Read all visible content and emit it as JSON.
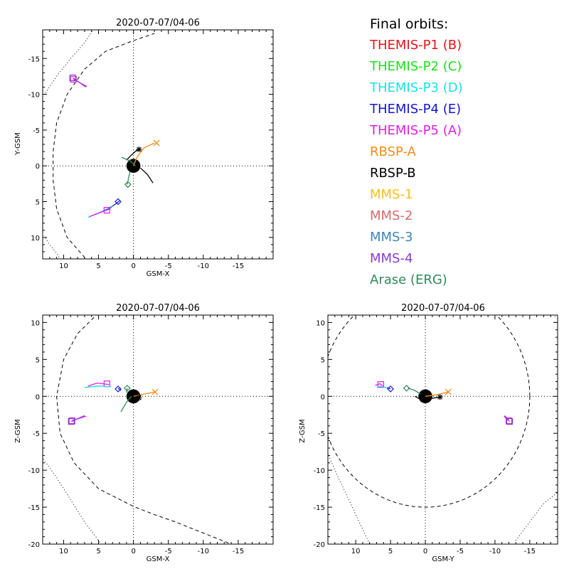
{
  "colors": {
    "THEMIS-P1": "#e8111c",
    "THEMIS-P2": "#19e01a",
    "THEMIS-P3": "#19dfe6",
    "THEMIS-P4": "#1414d6",
    "THEMIS-P5": "#e020e0",
    "RBSP-A": "#f08c1c",
    "RBSP-B": "#000000",
    "MMS-1": "#f5c018",
    "MMS-2": "#d46a6a",
    "MMS-3": "#3c86b8",
    "MMS-4": "#8a3bd6",
    "Arase": "#2f8a5a"
  },
  "legend": {
    "title": "Final orbits:",
    "items": [
      {
        "label": "THEMIS-P1 (B)",
        "key": "THEMIS-P1"
      },
      {
        "label": "THEMIS-P2 (C)",
        "key": "THEMIS-P2"
      },
      {
        "label": "THEMIS-P3 (D)",
        "key": "THEMIS-P3"
      },
      {
        "label": "THEMIS-P4 (E)",
        "key": "THEMIS-P4"
      },
      {
        "label": "THEMIS-P5 (A)",
        "key": "THEMIS-P5"
      },
      {
        "label": "RBSP-A",
        "key": "RBSP-A"
      },
      {
        "label": "RBSP-B",
        "key": "RBSP-B"
      },
      {
        "label": "MMS-1",
        "key": "MMS-1"
      },
      {
        "label": "MMS-2",
        "key": "MMS-2"
      },
      {
        "label": "MMS-3",
        "key": "MMS-3"
      },
      {
        "label": "MMS-4",
        "key": "MMS-4"
      },
      {
        "label": "Arase (ERG)",
        "key": "Arase"
      }
    ]
  },
  "chart_data": [
    {
      "type": "line",
      "title": "2020-07-07/04-06",
      "xlabel": "GSM-X",
      "ylabel": "Y-GSM",
      "xlim": [
        13,
        -20
      ],
      "ylim": [
        13,
        -19
      ],
      "xticks": [
        10,
        5,
        0,
        -5,
        -10,
        -15
      ],
      "yticks": [
        10,
        5,
        0,
        -5,
        -10,
        -15
      ],
      "xticklabels": [
        "10",
        "5",
        "0",
        "-5",
        "-10",
        "-15"
      ],
      "yticklabels": [
        "10",
        "5",
        "0",
        "-5",
        "-10",
        "-15"
      ],
      "boundaries": {
        "magnetopause": [
          [
            2,
            16.8
          ],
          [
            6,
            13.9
          ],
          [
            9.5,
            10
          ],
          [
            11,
            6
          ],
          [
            11.5,
            2
          ],
          [
            11.5,
            -2
          ],
          [
            11,
            -6
          ],
          [
            9.5,
            -10
          ],
          [
            7,
            -13.5
          ],
          [
            4,
            -16
          ],
          [
            0,
            -17.5
          ],
          [
            -3,
            -18.5
          ]
        ],
        "bow_shock": [
          [
            12.6,
            -10.2
          ],
          [
            11,
            -12.5
          ],
          [
            9,
            -15
          ],
          [
            7,
            -17.2
          ],
          [
            5.8,
            -19
          ]
        ],
        "bow_shock_2": [
          [
            12.6,
            10.1
          ],
          [
            12,
            11
          ],
          [
            11,
            12.2
          ],
          [
            10.5,
            13
          ]
        ]
      },
      "series": [
        {
          "key": "THEMIS-P5",
          "points": [
            [
              6.7,
              -11.1
            ],
            [
              8.6,
              -12.1
            ]
          ],
          "marker": "square",
          "end": [
            8.6,
            -12.1
          ]
        },
        {
          "key": "MMS-4",
          "points": [
            [
              6.8,
              -11
            ],
            [
              8.7,
              -12.3
            ]
          ],
          "marker": "square",
          "end": [
            8.7,
            -12.3
          ]
        },
        {
          "key": "RBSP-A",
          "points": [
            [
              0,
              0
            ],
            [
              -0.5,
              -1.2
            ],
            [
              -1.5,
              -2.5
            ],
            [
              -3,
              -3.2
            ]
          ],
          "marker": "x",
          "end": [
            -3.3,
            -3.2
          ]
        },
        {
          "key": "RBSP-B",
          "points": [
            [
              1,
              -0.8
            ],
            [
              0.3,
              -1.5
            ],
            [
              -0.6,
              -2.3
            ]
          ],
          "marker": "star",
          "end": [
            -0.8,
            -2.3
          ]
        },
        {
          "key": "RBSP-B-arc",
          "color_key": "RBSP-B",
          "points": [
            [
              -1,
              0.3
            ],
            [
              -2,
              1.2
            ],
            [
              -2.8,
              2.4
            ]
          ],
          "marker": "none"
        },
        {
          "key": "Arase",
          "points": [
            [
              1.7,
              -1.2
            ],
            [
              0.5,
              -0.7
            ],
            [
              -0.3,
              0
            ]
          ],
          "marker": "none"
        },
        {
          "key": "Arase-2",
          "color_key": "Arase",
          "points": [
            [
              0.5,
              0.8
            ],
            [
              0.9,
              2.6
            ]
          ],
          "marker": "diamond",
          "end": [
            0.8,
            2.6
          ]
        },
        {
          "key": "THEMIS-P4",
          "points": [
            [
              2,
              4.9
            ],
            [
              3.5,
              6
            ],
            [
              5.5,
              6.8
            ]
          ],
          "marker": "diamond",
          "end": [
            2.2,
            5
          ]
        },
        {
          "key": "THEMIS-P3",
          "points": [
            [
              3,
              5.6
            ],
            [
              4.8,
              6.5
            ],
            [
              6.5,
              7.2
            ]
          ],
          "marker": "none"
        },
        {
          "key": "THEMIS-P5b",
          "color_key": "THEMIS-P5",
          "points": [
            [
              3.3,
              6
            ],
            [
              5,
              6.6
            ],
            [
              6.3,
              7.1
            ]
          ],
          "marker": "square",
          "end": [
            3.8,
            6.2
          ]
        }
      ]
    },
    {
      "type": "line",
      "title": "2020-07-07/04-06",
      "xlabel": "GSM-X",
      "ylabel": "Z-GSM",
      "xlim": [
        13,
        -20
      ],
      "ylim": [
        -20,
        11
      ],
      "xticks": [
        10,
        5,
        0,
        -5,
        -10,
        -15
      ],
      "yticks": [
        10,
        5,
        0,
        -5,
        -10,
        -15,
        -20
      ],
      "xticklabels": [
        "10",
        "5",
        "0",
        "-5",
        "-10",
        "-15"
      ],
      "yticklabels": [
        "10",
        "5",
        "0",
        "-5",
        "-10",
        "-15",
        "-20"
      ],
      "boundaries": {
        "magnetopause": [
          [
            5,
            11.3
          ],
          [
            8,
            8.5
          ],
          [
            10,
            5
          ],
          [
            11,
            0
          ],
          [
            10.5,
            -5
          ],
          [
            8.5,
            -9
          ],
          [
            5,
            -12.5
          ],
          [
            0,
            -14.9
          ],
          [
            -3,
            -16
          ],
          [
            -6,
            -17
          ],
          [
            -10,
            -18.5
          ],
          [
            -14,
            -20
          ]
        ],
        "bow_shock": [
          [
            12.9,
            -8.5
          ],
          [
            11,
            -11
          ],
          [
            9,
            -14
          ],
          [
            7,
            -17
          ],
          [
            5,
            -19.5
          ],
          [
            4.8,
            -20
          ]
        ]
      },
      "series": [
        {
          "key": "THEMIS-P5",
          "points": [
            [
              6.8,
              -2.7
            ],
            [
              8.8,
              -3.3
            ]
          ],
          "marker": "square",
          "end": [
            8.8,
            -3.3
          ]
        },
        {
          "key": "MMS-4",
          "points": [
            [
              7,
              -2.6
            ],
            [
              8.9,
              -3.4
            ]
          ],
          "marker": "square",
          "end": [
            8.9,
            -3.4
          ]
        },
        {
          "key": "THEMIS-P5b",
          "color_key": "THEMIS-P5",
          "points": [
            [
              3.5,
              1.6
            ],
            [
              5.2,
              1.8
            ],
            [
              6.5,
              1.4
            ]
          ],
          "marker": "square",
          "end": [
            3.8,
            1.7
          ]
        },
        {
          "key": "THEMIS-P3",
          "points": [
            [
              3.2,
              1.3
            ],
            [
              5,
              1.4
            ],
            [
              7,
              1.2
            ]
          ],
          "marker": "none"
        },
        {
          "key": "THEMIS-P4",
          "points": [
            [
              2.2,
              1.1
            ],
            [
              1.8,
              0.8
            ]
          ],
          "marker": "diamond",
          "end": [
            2.2,
            1
          ]
        },
        {
          "key": "RBSP-A",
          "points": [
            [
              0,
              0
            ],
            [
              -1.5,
              0.3
            ],
            [
              -3,
              0.6
            ]
          ],
          "marker": "x",
          "end": [
            -3.1,
            0.6
          ]
        },
        {
          "key": "RBSP-B",
          "points": [
            [
              -1,
              0.2
            ],
            [
              -0.5,
              -0.3
            ]
          ],
          "marker": "star",
          "end": [
            -0.8,
            -0.2
          ]
        },
        {
          "key": "Arase",
          "points": [
            [
              1.8,
              -2.1
            ],
            [
              1,
              -0.8
            ],
            [
              0.3,
              0
            ]
          ],
          "marker": "none"
        },
        {
          "key": "Arase-2",
          "color_key": "Arase",
          "points": [
            [
              1,
              0.5
            ],
            [
              0.9,
              1.1
            ]
          ],
          "marker": "diamond",
          "end": [
            0.9,
            1.1
          ]
        }
      ]
    },
    {
      "type": "line",
      "title": "2020-07-07/04-06",
      "xlabel": "GSM-Y",
      "ylabel": "Z-GSM",
      "xlim": [
        14,
        -19
      ],
      "ylim": [
        -20,
        11
      ],
      "xticks": [
        10,
        5,
        0,
        -5,
        -10,
        -15
      ],
      "yticks": [
        10,
        5,
        0,
        -5,
        -10,
        -15,
        -20
      ],
      "xticklabels": [
        "10",
        "5",
        "0",
        "-5",
        "-10",
        "-15"
      ],
      "yticklabels": [
        "10",
        "5",
        "0",
        "-5",
        "-10",
        "-15",
        "-20"
      ],
      "boundaries": {
        "magnetopause_circle": {
          "cx": 0,
          "cy": 0,
          "r": 15
        },
        "bow_shock": [
          [
            13.9,
            -8
          ],
          [
            12.5,
            -11
          ],
          [
            11,
            -14
          ],
          [
            10,
            -16
          ],
          [
            9,
            -18
          ],
          [
            8,
            -20
          ]
        ],
        "bow_shock_2": [
          [
            -13,
            -19.5
          ],
          [
            -15,
            -17
          ],
          [
            -17,
            -14.5
          ],
          [
            -19,
            -13
          ]
        ],
        "bow_shock_3": [
          [
            -19,
            11.5
          ],
          [
            -18.5,
            10.5
          ]
        ]
      },
      "series": [
        {
          "key": "THEMIS-P5",
          "points": [
            [
              -11.3,
              -2.7
            ],
            [
              -12,
              -3.3
            ]
          ],
          "marker": "square",
          "end": [
            -12,
            -3.3
          ]
        },
        {
          "key": "MMS-4",
          "points": [
            [
              -11.4,
              -2.6
            ],
            [
              -12.1,
              -3.4
            ]
          ],
          "marker": "square",
          "end": [
            -12.1,
            -3.4
          ]
        },
        {
          "key": "THEMIS-P5b",
          "color_key": "THEMIS-P5",
          "points": [
            [
              7.2,
              1.5
            ],
            [
              6.5,
              1.7
            ],
            [
              5.8,
              1.2
            ]
          ],
          "marker": "square",
          "end": [
            6.4,
            1.6
          ]
        },
        {
          "key": "THEMIS-P3",
          "points": [
            [
              7,
              1.2
            ],
            [
              6.2,
              1.4
            ],
            [
              5.5,
              1.1
            ]
          ],
          "marker": "none"
        },
        {
          "key": "THEMIS-P4",
          "points": [
            [
              5.5,
              1.2
            ],
            [
              5,
              1
            ]
          ],
          "marker": "diamond",
          "end": [
            5,
            1
          ]
        },
        {
          "key": "RBSP-A",
          "points": [
            [
              0,
              0
            ],
            [
              -1.5,
              0.2
            ],
            [
              -3.3,
              0.6
            ]
          ],
          "marker": "x",
          "end": [
            -3.3,
            0.6
          ]
        },
        {
          "key": "RBSP-B",
          "points": [
            [
              1.5,
              0
            ],
            [
              0.5,
              -0.5
            ],
            [
              -2,
              -0.1
            ]
          ],
          "marker": "star",
          "end": [
            -2.1,
            -0.1
          ]
        },
        {
          "key": "Arase",
          "points": [
            [
              2.5,
              1.1
            ],
            [
              1.5,
              0.8
            ],
            [
              0.7,
              0.3
            ]
          ],
          "marker": "none"
        },
        {
          "key": "Arase-2",
          "color_key": "Arase",
          "points": [
            [
              2.7,
              1.1
            ]
          ],
          "marker": "diamond",
          "end": [
            2.7,
            1.1
          ]
        }
      ]
    }
  ]
}
